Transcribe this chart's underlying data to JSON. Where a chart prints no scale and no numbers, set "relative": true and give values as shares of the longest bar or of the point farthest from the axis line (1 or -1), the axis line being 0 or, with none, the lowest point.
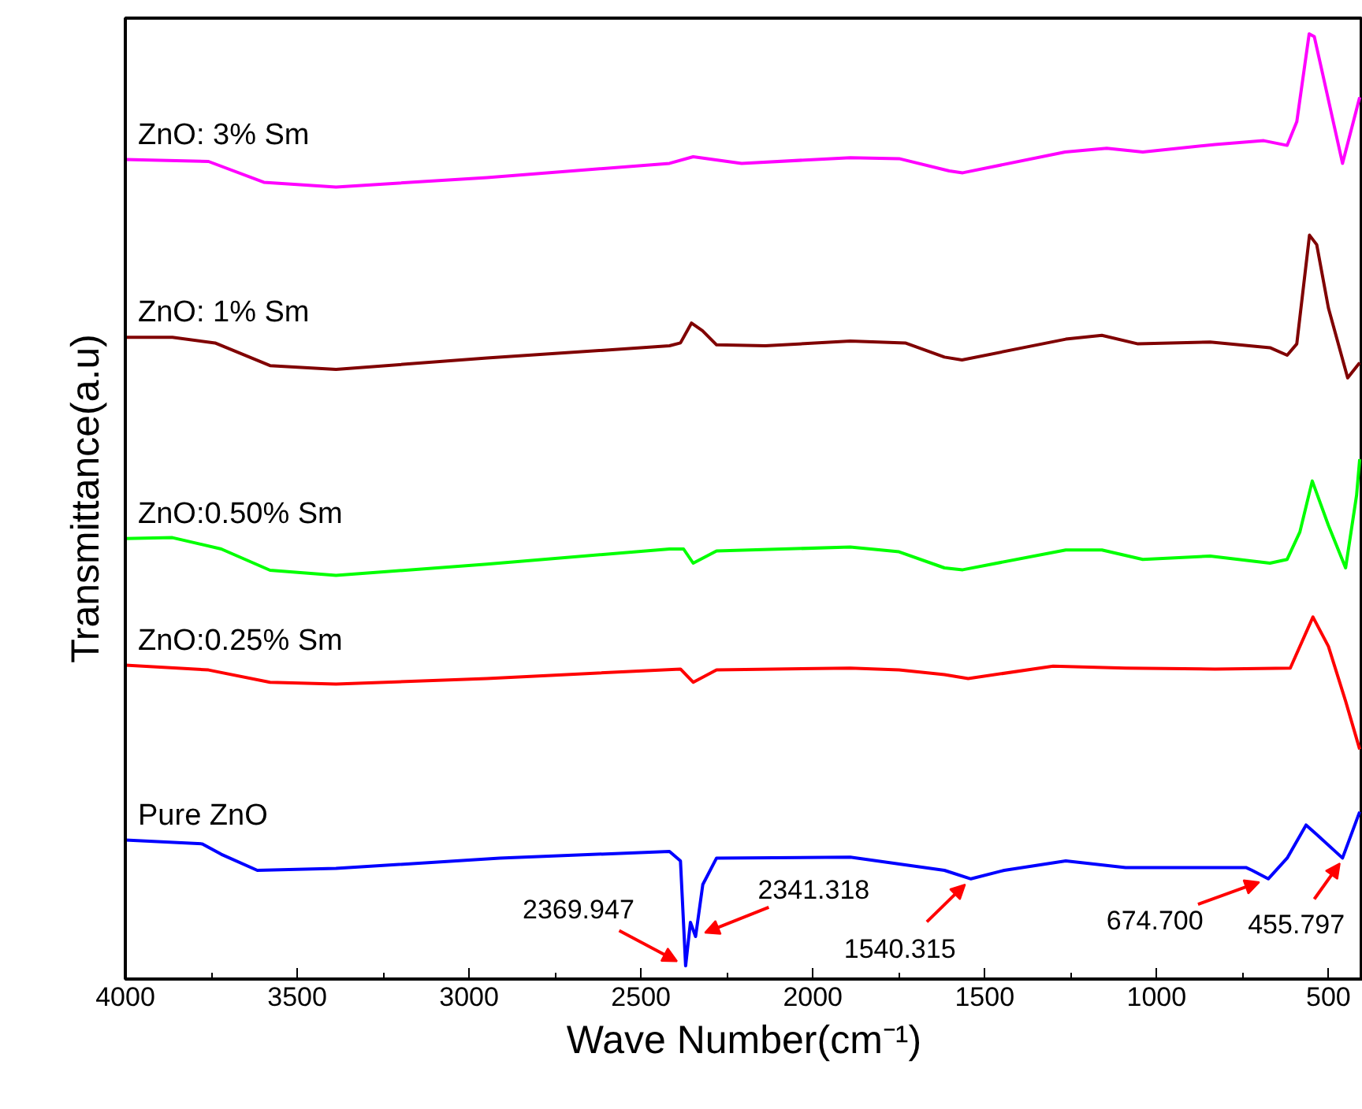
{
  "chart_data": {
    "type": "line",
    "xlabel": "Wave Number(cm⁻¹)",
    "ylabel": "Transmittance(a.u)",
    "relative": true,
    "grid": false,
    "marker": "none",
    "line_style": "solid",
    "xlim": [
      4000,
      400
    ],
    "xticks": [
      4000,
      {
        "value": 3750,
        "label": null
      },
      3500,
      {
        "value": 3250,
        "label": null
      },
      3000,
      {
        "value": 2750,
        "label": null
      },
      2500,
      {
        "value": 2250,
        "label": null
      },
      2000,
      {
        "value": 1750,
        "label": null
      },
      1500,
      {
        "value": 1250,
        "label": null
      },
      1000,
      {
        "value": 750,
        "label": null
      },
      500
    ],
    "series": [
      {
        "name": "ZnO: 3% Sm",
        "color": "#ff00ff",
        "x": [
          4000,
          3758,
          3597,
          3387,
          2948,
          2417,
          2348,
          2207,
          1891,
          1749,
          1603,
          1564,
          1266,
          1145,
          1040,
          830,
          688,
          620,
          592,
          556,
          541,
          517,
          459,
          409
        ],
        "values": [
          0.867,
          0.865,
          0.843,
          0.838,
          0.848,
          0.863,
          0.87,
          0.863,
          0.869,
          0.868,
          0.855,
          0.853,
          0.875,
          0.879,
          0.875,
          0.883,
          0.887,
          0.882,
          0.907,
          1.0,
          0.997,
          0.958,
          0.863,
          0.933
        ]
      },
      {
        "name": "ZnO: 1% Sm",
        "color": "#800000",
        "x": [
          4000,
          3863,
          3739,
          3579,
          3387,
          2948,
          2417,
          2385,
          2353,
          2321,
          2280,
          2138,
          1891,
          1731,
          1617,
          1566,
          1264,
          1159,
          1054,
          844,
          670,
          620,
          592,
          555,
          534,
          500,
          444,
          409
        ],
        "values": [
          0.679,
          0.679,
          0.673,
          0.649,
          0.645,
          0.657,
          0.67,
          0.673,
          0.694,
          0.686,
          0.671,
          0.67,
          0.675,
          0.673,
          0.658,
          0.655,
          0.677,
          0.681,
          0.672,
          0.674,
          0.668,
          0.66,
          0.672,
          0.787,
          0.777,
          0.71,
          0.636,
          0.652
        ]
      },
      {
        "name": "ZnO:0.50% Sm",
        "color": "#00ff00",
        "x": [
          4000,
          3863,
          3721,
          3579,
          3387,
          2948,
          2417,
          2376,
          2348,
          2280,
          1891,
          1749,
          1617,
          1564,
          1264,
          1159,
          1040,
          844,
          670,
          620,
          583,
          547,
          500,
          450,
          418,
          409
        ],
        "values": [
          0.466,
          0.467,
          0.455,
          0.4325,
          0.427,
          0.439,
          0.455,
          0.455,
          0.44,
          0.453,
          0.457,
          0.452,
          0.435,
          0.433,
          0.454,
          0.454,
          0.444,
          0.4475,
          0.44,
          0.444,
          0.473,
          0.527,
          0.48,
          0.435,
          0.512,
          0.55
        ]
      },
      {
        "name": "ZnO:0.25% Sm",
        "color": "#ff0000",
        "x": [
          4000,
          3758,
          3579,
          3387,
          2948,
          2385,
          2348,
          2280,
          1891,
          1749,
          1617,
          1548,
          1301,
          1090,
          830,
          611,
          545,
          500,
          450,
          409
        ],
        "values": [
          0.332,
          0.327,
          0.314,
          0.312,
          0.318,
          0.328,
          0.314,
          0.327,
          0.329,
          0.327,
          0.322,
          0.318,
          0.331,
          0.329,
          0.328,
          0.329,
          0.383,
          0.352,
          0.294,
          0.243
        ]
      },
      {
        "name": "Pure ZnO",
        "color": "#0000ff",
        "x": [
          4000,
          3776,
          3721,
          3616,
          3387,
          2911,
          2417,
          2385,
          2370,
          2356,
          2341,
          2320,
          2280,
          1891,
          1617,
          1540,
          1443,
          1264,
          1090,
          740,
          722,
          675,
          620,
          565,
          534,
          459,
          409
        ],
        "values": [
          0.147,
          0.143,
          0.132,
          0.115,
          0.117,
          0.128,
          0.135,
          0.125,
          0.014,
          0.06,
          0.045,
          0.1,
          0.128,
          0.129,
          0.115,
          0.106,
          0.115,
          0.125,
          0.118,
          0.118,
          0.115,
          0.106,
          0.128,
          0.163,
          0.153,
          0.128,
          0.177
        ]
      }
    ],
    "annotations": [
      {
        "text": "2369.947",
        "x": 2369.947,
        "y": 0.014
      },
      {
        "text": "2341.318",
        "x": 2341.318,
        "y": 0.045
      },
      {
        "text": "1540.315",
        "x": 1540.315,
        "y": 0.106
      },
      {
        "text": "674.700",
        "x": 674.7,
        "y": 0.106
      },
      {
        "text": "455.797",
        "x": 455.797,
        "y": 0.128
      }
    ]
  }
}
